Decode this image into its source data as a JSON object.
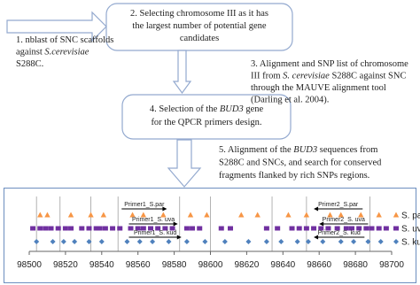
{
  "steps": [
    {
      "lines": [
        [
          {
            "text": "1. nblast of SNC scaffolds"
          }
        ],
        [
          {
            "text": "against "
          },
          {
            "text": "S.cerevisiae",
            "italic": true
          }
        ],
        [
          {
            "text": "S288C."
          }
        ]
      ]
    },
    {
      "lines": [
        [
          {
            "text": "2. Selecting chromosome III as it has"
          }
        ],
        [
          {
            "text": "the largest number of potential gene"
          }
        ],
        [
          {
            "text": "candidates"
          }
        ]
      ]
    },
    {
      "lines": [
        [
          {
            "text": "3. Alignment and SNP list of chromosome"
          }
        ],
        [
          {
            "text": "III from "
          },
          {
            "text": "S. cerevisiae",
            "italic": true
          },
          {
            "text": " S288C against SNC"
          }
        ],
        [
          {
            "text": "through the MAUVE alignment tool"
          }
        ],
        [
          {
            "text": "(Darling et al. 2004)."
          }
        ]
      ]
    },
    {
      "lines": [
        [
          {
            "text": "4. Selection of the "
          },
          {
            "text": "BUD3",
            "italic": true
          },
          {
            "text": " gene"
          }
        ],
        [
          {
            "text": "for the QPCR primers design."
          }
        ]
      ]
    },
    {
      "lines": [
        [
          {
            "text": "5. Alignment of the "
          },
          {
            "text": "BUD3",
            "italic": true
          },
          {
            "text": " sequences from"
          }
        ],
        [
          {
            "text": "S288C and SNCs, and search for conserved"
          }
        ],
        [
          {
            "text": "fragments flanked by rich SNPs regions."
          }
        ]
      ]
    }
  ],
  "chart": {
    "type": "scatter",
    "xlim": [
      98500,
      98700
    ],
    "xticks": [
      98500,
      98520,
      98540,
      98560,
      98580,
      98600,
      98620,
      98640,
      98660,
      98680,
      98700
    ],
    "divisions": [
      98504,
      98517,
      98534,
      98549,
      98583,
      98600,
      98634,
      98653,
      98688
    ],
    "series": [
      {
        "name": "S. par",
        "color": "#f79646",
        "marker": "triangle",
        "values": [
          98506,
          98510,
          98523,
          98534,
          98541,
          98557,
          98563,
          98574,
          98589,
          98598,
          98617,
          98626,
          98643,
          98653,
          98666,
          98672,
          98683,
          98693
        ]
      },
      {
        "name": "S. uva",
        "color": "#7030a0",
        "marker": "square",
        "values": [
          98502,
          98506,
          98509,
          98512,
          98516,
          98520,
          98523,
          98529,
          98533,
          98537,
          98539,
          98542,
          98546,
          98550,
          98556,
          98560,
          98563,
          98567,
          98571,
          98575,
          98579,
          98587,
          98590,
          98594,
          98606,
          98611,
          98631,
          98637,
          98645,
          98649,
          98653,
          98657,
          98661,
          98665,
          98670,
          98675,
          98678,
          98682,
          98686,
          98689,
          98693,
          98697
        ]
      },
      {
        "name": "S. kud",
        "color": "#4f81bd",
        "marker": "diamond",
        "values": [
          98504,
          98513,
          98519,
          98525,
          98533,
          98540,
          98554,
          98561,
          98568,
          98577,
          98587,
          98597,
          98608,
          98621,
          98631,
          98639,
          98648,
          98654,
          98662,
          98672,
          98679,
          98687,
          98694
        ]
      }
    ],
    "primers": [
      {
        "label": "Primer1_S.par",
        "start": 98551,
        "end": 98576
      },
      {
        "label": "Primer1_S. uva",
        "start": 98555,
        "end": 98582
      },
      {
        "label": "Primer1_S. kud",
        "start": 98555,
        "end": 98584
      },
      {
        "label": "Primer2_S.par",
        "start": 98684,
        "end": 98657
      },
      {
        "label": "Primer2_S. uva",
        "start": 98687,
        "end": 98660
      },
      {
        "label": "Primer2_S. kud",
        "start": 98685,
        "end": 98657
      }
    ]
  }
}
